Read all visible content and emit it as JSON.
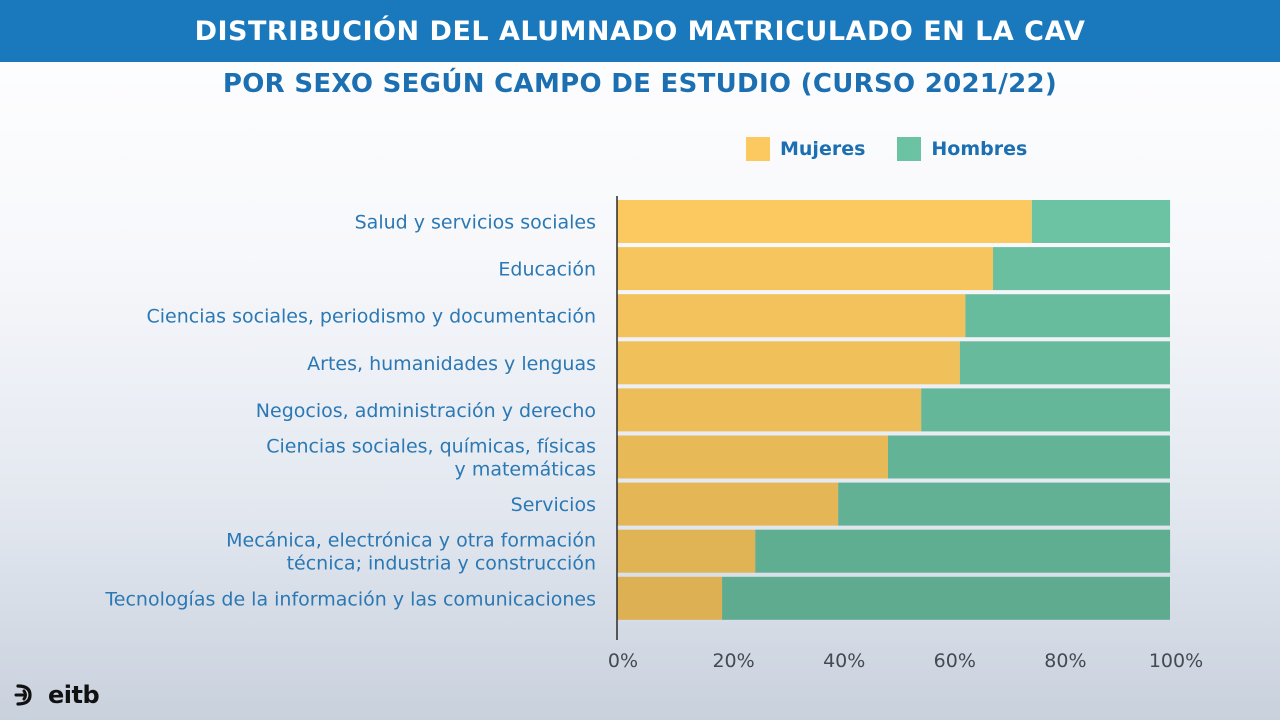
{
  "header": {
    "title": "DISTRIBUCIÓN DEL ALUMNADO MATRICULADO EN LA CAV",
    "subtitle": "POR SEXO SEGÚN CAMPO DE ESTUDIO (CURSO 2021/22)"
  },
  "legend": {
    "mujeres": "Mujeres",
    "hombres": "Hombres"
  },
  "colors": {
    "mujeres": "#fbc95f",
    "hombres": "#6cc3a4",
    "banner": "#1a78bd"
  },
  "logo": {
    "text": "eitb"
  },
  "chart_data": {
    "type": "bar",
    "orientation": "horizontal",
    "stacked": true,
    "categories": [
      [
        "Salud y servicios sociales"
      ],
      [
        "Educación"
      ],
      [
        "Ciencias sociales, periodismo y documentación"
      ],
      [
        "Artes, humanidades y lenguas"
      ],
      [
        "Negocios, administración y derecho"
      ],
      [
        "Ciencias sociales, químicas, físicas",
        "y matemáticas"
      ],
      [
        "Servicios"
      ],
      [
        "Mecánica, electrónica y otra formación",
        "técnica; industria y construcción"
      ],
      [
        "Tecnologías de la información y las comunicaciones"
      ]
    ],
    "series": [
      {
        "name": "Mujeres",
        "values": [
          75,
          68,
          63,
          62,
          55,
          49,
          40,
          25,
          19
        ]
      },
      {
        "name": "Hombres",
        "values": [
          25,
          32,
          37,
          38,
          45,
          51,
          60,
          75,
          81
        ]
      }
    ],
    "xlim": [
      0,
      100
    ],
    "xticks": [
      "0%",
      "20%",
      "40%",
      "60%",
      "80%",
      "100%"
    ],
    "grid": false,
    "legend_position": "top-right"
  }
}
